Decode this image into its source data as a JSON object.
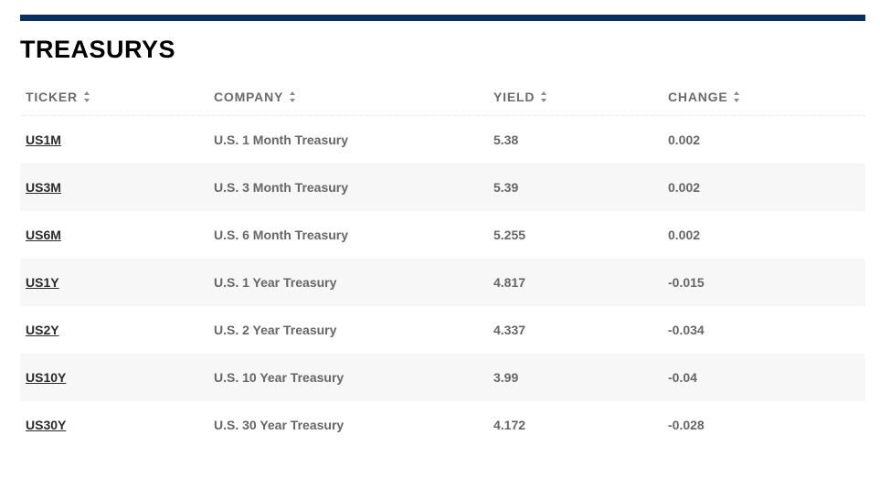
{
  "section": {
    "title": "TREASURYS",
    "accent_color": "#0b2f63"
  },
  "table": {
    "headers": [
      {
        "label": "TICKER",
        "icon": "sort-icon"
      },
      {
        "label": "COMPANY",
        "icon": "sort-icon"
      },
      {
        "label": "YIELD",
        "icon": "sort-icon"
      },
      {
        "label": "CHANGE",
        "icon": "sort-icon"
      }
    ],
    "rows": [
      {
        "ticker": "US1M",
        "company": "U.S. 1 Month Treasury",
        "yield": "5.38",
        "change": "0.002"
      },
      {
        "ticker": "US3M",
        "company": "U.S. 3 Month Treasury",
        "yield": "5.39",
        "change": "0.002"
      },
      {
        "ticker": "US6M",
        "company": "U.S. 6 Month Treasury",
        "yield": "5.255",
        "change": "0.002"
      },
      {
        "ticker": "US1Y",
        "company": "U.S. 1 Year Treasury",
        "yield": "4.817",
        "change": "-0.015"
      },
      {
        "ticker": "US2Y",
        "company": "U.S. 2 Year Treasury",
        "yield": "4.337",
        "change": "-0.034"
      },
      {
        "ticker": "US10Y",
        "company": "U.S. 10 Year Treasury",
        "yield": "3.99",
        "change": "-0.04"
      },
      {
        "ticker": "US30Y",
        "company": "U.S. 30 Year Treasury",
        "yield": "4.172",
        "change": "-0.028"
      }
    ]
  }
}
